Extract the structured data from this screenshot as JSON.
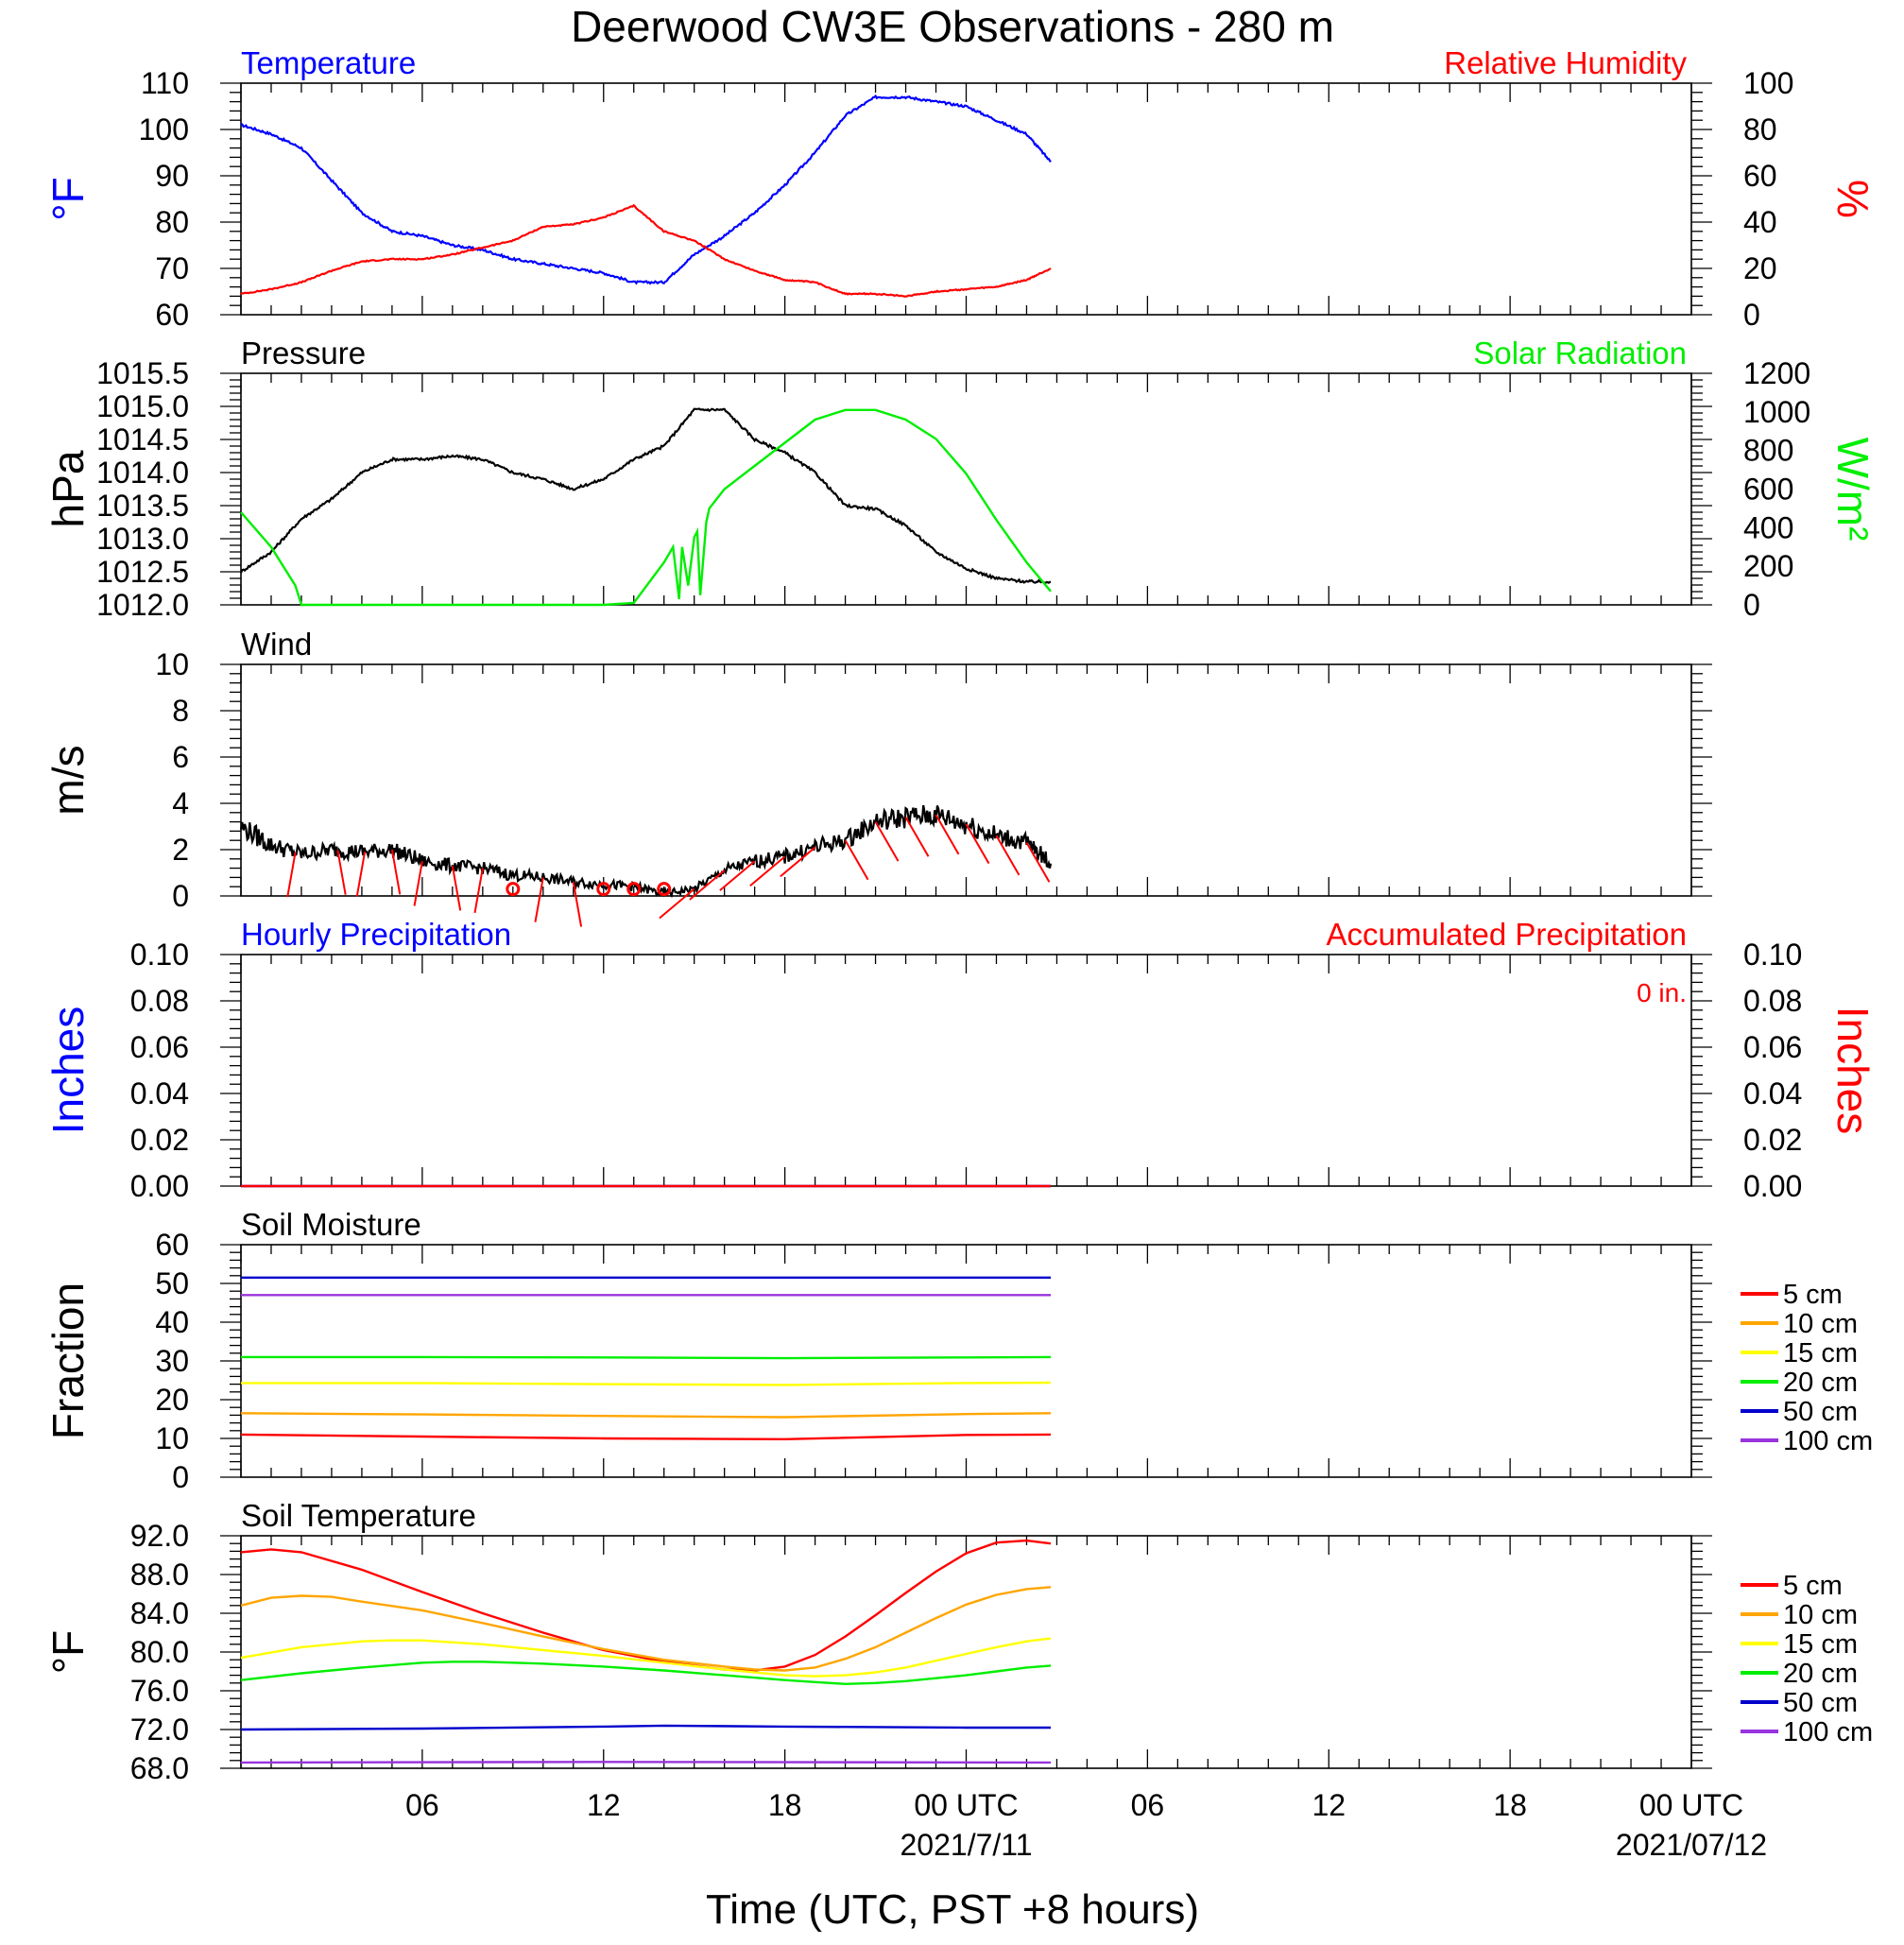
{
  "title": "Deerwood CW3E Observations - 280 m",
  "xlabel": "Time (UTC, PST +8 hours)",
  "time_axis": {
    "range_hours": [
      0,
      48
    ],
    "ticks": [
      {
        "h": 6,
        "label": "06"
      },
      {
        "h": 12,
        "label": "12"
      },
      {
        "h": 18,
        "label": "18"
      },
      {
        "h": 24,
        "label": "00 UTC",
        "date": "2021/7/11"
      },
      {
        "h": 30,
        "label": "06"
      },
      {
        "h": 36,
        "label": "12"
      },
      {
        "h": 42,
        "label": "18"
      },
      {
        "h": 48,
        "label": "00 UTC",
        "date": "2021/07/12"
      }
    ],
    "data_end_hour": 26.8
  },
  "colors": {
    "temperature": "#0000ff",
    "humidity": "#ff0000",
    "pressure": "#000000",
    "solar": "#00ee00",
    "wind": "#000000",
    "wind_barbs": "#ff0000",
    "hourly_precip": "#0000ff",
    "accum_precip": "#ff0000",
    "d5": "#ff0000",
    "d10": "#ffa500",
    "d15": "#ffff00",
    "d20": "#00ee00",
    "d50": "#0000cc",
    "d100": "#9933dd"
  },
  "chart_data": [
    {
      "id": "temp_rh",
      "type": "line",
      "title_left": "Temperature",
      "title_right": "Relative Humidity",
      "ylabel_left": "°F",
      "ylabel_right": "%",
      "ylim_left": [
        60,
        110
      ],
      "ylim_right": [
        0,
        100
      ],
      "yticks_left": [
        "60",
        "70",
        "80",
        "90",
        "100",
        "110"
      ],
      "yticks_right": [
        "0",
        "20",
        "40",
        "60",
        "80",
        "100"
      ],
      "series": [
        {
          "name": "Temperature",
          "axis": "left",
          "color": "#0000ff",
          "x": [
            0,
            1,
            2,
            3,
            4,
            5,
            6,
            7,
            8,
            9,
            10,
            11,
            12,
            13,
            14,
            15,
            16,
            17,
            18,
            19,
            20,
            21,
            22,
            23,
            24,
            25,
            26,
            26.8
          ],
          "y": [
            101,
            99,
            96,
            89,
            82,
            78,
            77,
            75,
            74,
            72,
            71,
            70,
            69,
            67,
            67,
            73,
            77,
            82,
            88,
            95,
            103,
            107,
            107,
            106,
            105,
            102,
            99,
            93
          ]
        },
        {
          "name": "Relative Humidity",
          "axis": "right",
          "color": "#ff0000",
          "x": [
            0,
            1,
            2,
            3,
            4,
            5,
            6,
            7,
            8,
            9,
            10,
            11,
            12,
            13,
            14,
            15,
            16,
            17,
            18,
            19,
            20,
            21,
            22,
            23,
            24,
            25,
            26,
            26.8
          ],
          "y": [
            9,
            11,
            14,
            19,
            23,
            24,
            24,
            26,
            29,
            32,
            38,
            39,
            42,
            47,
            36,
            32,
            24,
            19,
            15,
            14,
            9,
            9,
            8,
            10,
            11,
            12,
            15,
            20
          ]
        }
      ]
    },
    {
      "id": "press_solar",
      "type": "line",
      "title_left": "Pressure",
      "title_right": "Solar Radiation",
      "ylabel_left": "hPa",
      "ylabel_right": "W/m²",
      "ylim_left": [
        1012.0,
        1015.5
      ],
      "ylim_right": [
        0,
        1200
      ],
      "yticks_left": [
        "1012.0",
        "1012.5",
        "1013.0",
        "1013.5",
        "1014.0",
        "1014.5",
        "1015.0",
        "1015.5"
      ],
      "yticks_right": [
        "0",
        "200",
        "400",
        "600",
        "800",
        "1000",
        "1200"
      ],
      "series": [
        {
          "name": "Pressure",
          "axis": "left",
          "color": "#000000",
          "x": [
            0,
            1,
            2,
            3,
            4,
            5,
            6,
            7,
            8,
            9,
            10,
            11,
            12,
            13,
            14,
            15,
            16,
            17,
            18,
            19,
            20,
            21,
            22,
            23,
            24,
            25,
            26,
            26.8
          ],
          "y": [
            1012.5,
            1012.8,
            1013.3,
            1013.6,
            1014.0,
            1014.2,
            1014.2,
            1014.25,
            1014.2,
            1014.0,
            1013.9,
            1013.75,
            1013.9,
            1014.2,
            1014.4,
            1014.95,
            1014.95,
            1014.5,
            1014.3,
            1014.0,
            1013.5,
            1013.45,
            1013.2,
            1012.8,
            1012.55,
            1012.4,
            1012.35,
            1012.35
          ]
        },
        {
          "name": "Solar Radiation",
          "axis": "right",
          "color": "#00ee00",
          "x": [
            0,
            1,
            1.8,
            2,
            12,
            13,
            14,
            14.3,
            14.5,
            14.6,
            14.8,
            15.0,
            15.1,
            15.2,
            15.4,
            15.5,
            16,
            17,
            18,
            19,
            20,
            21,
            22,
            23,
            24,
            25,
            26,
            26.8
          ],
          "y": [
            480,
            300,
            100,
            0,
            0,
            10,
            220,
            300,
            30,
            300,
            100,
            350,
            380,
            50,
            430,
            500,
            600,
            720,
            840,
            960,
            1010,
            1010,
            960,
            860,
            680,
            440,
            220,
            70
          ]
        }
      ]
    },
    {
      "id": "wind",
      "type": "line",
      "title_left": "Wind",
      "ylabel_left": "m/s",
      "ylim_left": [
        0,
        10
      ],
      "yticks_left": [
        "0",
        "2",
        "4",
        "6",
        "8",
        "10"
      ],
      "series": [
        {
          "name": "Wind",
          "axis": "left",
          "color": "#000000",
          "x": [
            0,
            1,
            2,
            3,
            4,
            5,
            6,
            7,
            8,
            9,
            10,
            11,
            12,
            13,
            14,
            15,
            16,
            17,
            18,
            19,
            20,
            21,
            22,
            23,
            24,
            25,
            26,
            26.8
          ],
          "y": [
            3.0,
            2.2,
            1.8,
            2.0,
            1.9,
            2.0,
            1.5,
            1.3,
            1.2,
            0.9,
            0.8,
            0.6,
            0.5,
            0.4,
            0.1,
            0.3,
            1.1,
            1.5,
            1.7,
            2.1,
            2.4,
            3.2,
            3.4,
            3.5,
            3.1,
            2.6,
            2.3,
            1.4
          ]
        }
      ],
      "barbs_x": [
        1.8,
        3.2,
        4.1,
        5.0,
        6.0,
        7.0,
        8.0,
        9.0,
        10.0,
        11.0,
        12.0,
        13.0,
        14.0,
        15.0,
        16.0,
        17.0,
        18.0,
        19.0,
        20.0,
        21.0,
        22.0,
        23.0,
        24.0,
        25.0,
        26.0
      ],
      "calm_x": [
        9.0,
        12.0,
        13.0,
        14.0
      ]
    },
    {
      "id": "precip",
      "type": "line",
      "title_left": "Hourly Precipitation",
      "title_right": "Accumulated Precipitation",
      "annotation": "0 in.",
      "ylabel_left": "Inches",
      "ylabel_right": "Inches",
      "ylim_left": [
        0,
        0.1
      ],
      "ylim_right": [
        0,
        0.1
      ],
      "yticks_left": [
        "0.00",
        "0.02",
        "0.04",
        "0.06",
        "0.08",
        "0.10"
      ],
      "yticks_right": [
        "0.00",
        "0.02",
        "0.04",
        "0.06",
        "0.08",
        "0.10"
      ],
      "series": [
        {
          "name": "Hourly Precipitation",
          "axis": "left",
          "color": "#0000ff",
          "x": [
            0,
            26.8
          ],
          "y": [
            0,
            0
          ]
        },
        {
          "name": "Accumulated Precipitation",
          "axis": "right",
          "color": "#ff0000",
          "x": [
            0,
            26.8
          ],
          "y": [
            0,
            0
          ]
        }
      ]
    },
    {
      "id": "soil_moisture",
      "type": "line",
      "title_left": "Soil Moisture",
      "ylabel_left": "Fraction",
      "ylim_left": [
        0,
        60
      ],
      "yticks_left": [
        "0",
        "10",
        "20",
        "30",
        "40",
        "50",
        "60"
      ],
      "legend": [
        "5 cm",
        "10 cm",
        "15 cm",
        "20 cm",
        "50 cm",
        "100 cm"
      ],
      "series": [
        {
          "name": "5 cm",
          "color": "#ff0000",
          "x": [
            0,
            6,
            12,
            18,
            24,
            26.8
          ],
          "y": [
            11.0,
            10.5,
            10.0,
            9.8,
            10.9,
            11.0
          ]
        },
        {
          "name": "10 cm",
          "color": "#ffa500",
          "x": [
            0,
            6,
            12,
            18,
            24,
            26.8
          ],
          "y": [
            16.5,
            16.2,
            15.8,
            15.5,
            16.3,
            16.5
          ]
        },
        {
          "name": "15 cm",
          "color": "#ffff00",
          "x": [
            0,
            6,
            12,
            18,
            24,
            26.8
          ],
          "y": [
            24.3,
            24.3,
            24.0,
            23.8,
            24.3,
            24.4
          ]
        },
        {
          "name": "20 cm",
          "color": "#00ee00",
          "x": [
            0,
            6,
            12,
            18,
            24,
            26.8
          ],
          "y": [
            31.0,
            31.0,
            30.9,
            30.7,
            30.9,
            31.0
          ]
        },
        {
          "name": "50 cm",
          "color": "#0000cc",
          "x": [
            0,
            26.8
          ],
          "y": [
            51.5,
            51.5
          ]
        },
        {
          "name": "100 cm",
          "color": "#9933dd",
          "x": [
            0,
            26.8
          ],
          "y": [
            47.0,
            47.0
          ]
        }
      ]
    },
    {
      "id": "soil_temp",
      "type": "line",
      "title_left": "Soil Temperature",
      "ylabel_left": "°F",
      "ylim_left": [
        68,
        92
      ],
      "yticks_left": [
        "68.0",
        "72.0",
        "76.0",
        "80.0",
        "84.0",
        "88.0",
        "92.0"
      ],
      "legend": [
        "5 cm",
        "10 cm",
        "15 cm",
        "20 cm",
        "50 cm",
        "100 cm"
      ],
      "series": [
        {
          "name": "5 cm",
          "color": "#ff0000",
          "x": [
            0,
            1,
            2,
            4,
            6,
            8,
            10,
            12,
            14,
            16,
            17,
            18,
            19,
            20,
            21,
            22,
            23,
            24,
            25,
            26,
            26.8
          ],
          "y": [
            90.3,
            90.6,
            90.3,
            88.5,
            86.2,
            84.0,
            82.0,
            80.2,
            79.0,
            78.2,
            78.1,
            78.5,
            79.7,
            81.6,
            83.8,
            86.1,
            88.3,
            90.2,
            91.3,
            91.5,
            91.2
          ]
        },
        {
          "name": "10 cm",
          "color": "#ffa500",
          "x": [
            0,
            1,
            2,
            3,
            4,
            6,
            8,
            10,
            12,
            14,
            16,
            17,
            18,
            19,
            20,
            21,
            22,
            23,
            24,
            25,
            26,
            26.8
          ],
          "y": [
            84.8,
            85.6,
            85.8,
            85.7,
            85.2,
            84.3,
            83.0,
            81.6,
            80.3,
            79.2,
            78.5,
            78.2,
            78.1,
            78.4,
            79.3,
            80.5,
            82.0,
            83.5,
            84.9,
            85.9,
            86.5,
            86.7
          ]
        },
        {
          "name": "15 cm",
          "color": "#ffff00",
          "x": [
            0,
            2,
            4,
            5,
            6,
            8,
            10,
            12,
            14,
            16,
            18,
            19,
            20,
            21,
            22,
            23,
            24,
            25,
            26,
            26.8
          ],
          "y": [
            79.4,
            80.5,
            81.1,
            81.2,
            81.2,
            80.8,
            80.2,
            79.6,
            78.9,
            78.2,
            77.6,
            77.5,
            77.6,
            77.9,
            78.4,
            79.1,
            79.8,
            80.5,
            81.1,
            81.4
          ]
        },
        {
          "name": "20 cm",
          "color": "#00ee00",
          "x": [
            0,
            2,
            4,
            6,
            7,
            8,
            10,
            12,
            14,
            16,
            18,
            19,
            20,
            21,
            22,
            23,
            24,
            25,
            26,
            26.8
          ],
          "y": [
            77.1,
            77.8,
            78.4,
            78.9,
            79.0,
            79.0,
            78.8,
            78.5,
            78.1,
            77.6,
            77.1,
            76.9,
            76.7,
            76.8,
            77.0,
            77.3,
            77.6,
            78.0,
            78.4,
            78.6
          ]
        },
        {
          "name": "50 cm",
          "color": "#0000cc",
          "x": [
            0,
            6,
            12,
            14,
            18,
            24,
            26.8
          ],
          "y": [
            72.0,
            72.1,
            72.3,
            72.4,
            72.3,
            72.2,
            72.2
          ]
        },
        {
          "name": "100 cm",
          "color": "#9933dd",
          "x": [
            0,
            12,
            26.8
          ],
          "y": [
            68.6,
            68.65,
            68.6
          ]
        }
      ]
    }
  ]
}
